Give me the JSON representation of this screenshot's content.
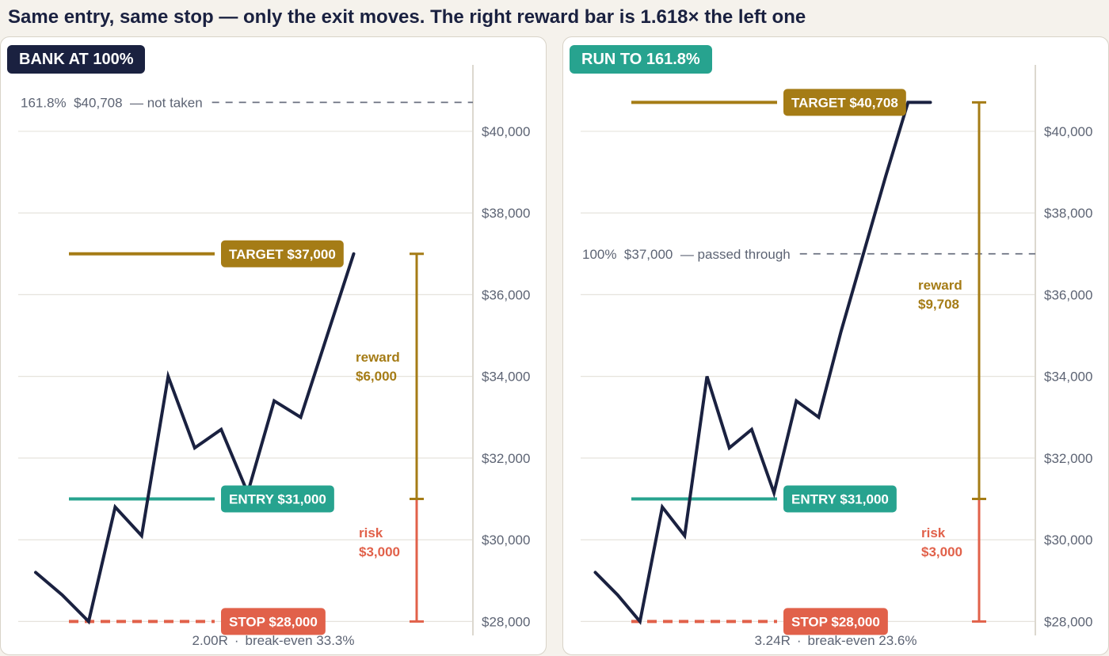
{
  "headline": "Same entry, same stop — only the exit moves. The right reward bar is 1.618× the left one",
  "colors": {
    "navy": "#1a2140",
    "teal": "#27a38f",
    "gold": "#a57c16",
    "red": "#e1614a",
    "grid": "#e6e3dc",
    "muted": "#5d6474"
  },
  "left": {
    "badge": "BANK AT 100%",
    "footer_r": "2.00R",
    "footer_sep": "·",
    "footer_be": "break-even 33.3%"
  },
  "right": {
    "badge": "RUN TO 161.8%",
    "footer_r": "3.24R",
    "footer_sep": "·",
    "footer_be": "break-even 23.6%"
  },
  "chart_data": [
    {
      "type": "line",
      "title": "BANK AT 100%",
      "ylim": [
        27600,
        41800
      ],
      "y_ticks": [
        28000,
        30000,
        32000,
        34000,
        36000,
        38000,
        40000
      ],
      "y_tick_labels": [
        "$28,000",
        "$30,000",
        "$32,000",
        "$34,000",
        "$36,000",
        "$38,000",
        "$40,000"
      ],
      "x": [
        0,
        1,
        2,
        3,
        4,
        5,
        6,
        7,
        8,
        9,
        10,
        11,
        12
      ],
      "xlim": [
        -0.3,
        16.5
      ],
      "price": [
        29200,
        28650,
        28000,
        30800,
        30100,
        34000,
        32250,
        32700,
        31150,
        33400,
        33000,
        35000,
        37000
      ],
      "levels": {
        "target": {
          "label": "TARGET $37,000",
          "value": 37000
        },
        "entry": {
          "label": "ENTRY $31,000",
          "value": 31000
        },
        "stop": {
          "label": "STOP $28,000",
          "value": 28000
        }
      },
      "dashed_ref": {
        "text": "161.8%  $40,708  — not taken",
        "value": 40708
      },
      "reward": {
        "label": "reward",
        "amount": "$6,000"
      },
      "risk": {
        "label": "risk",
        "amount": "$3,000"
      }
    },
    {
      "type": "line",
      "title": "RUN TO 161.8%",
      "ylim": [
        27600,
        41800
      ],
      "y_ticks": [
        28000,
        30000,
        32000,
        34000,
        36000,
        38000,
        40000
      ],
      "y_tick_labels": [
        "$28,000",
        "$30,000",
        "$32,000",
        "$34,000",
        "$36,000",
        "$38,000",
        "$40,000"
      ],
      "x": [
        0,
        1,
        2,
        3,
        4,
        5,
        6,
        7,
        8,
        9,
        10,
        11,
        12,
        13,
        14,
        15
      ],
      "xlim": [
        -0.3,
        19.7
      ],
      "price": [
        29200,
        28650,
        28000,
        30800,
        30100,
        34000,
        32250,
        32700,
        31150,
        33400,
        33000,
        35100,
        37000,
        38900,
        40708,
        40708
      ],
      "levels": {
        "target": {
          "label": "TARGET $40,708",
          "value": 40708
        },
        "entry": {
          "label": "ENTRY $31,000",
          "value": 31000
        },
        "stop": {
          "label": "STOP $28,000",
          "value": 28000
        }
      },
      "dashed_ref": {
        "text": "100%  $37,000  — passed through",
        "value": 37000
      },
      "reward": {
        "label": "reward",
        "amount": "$9,708"
      },
      "risk": {
        "label": "risk",
        "amount": "$3,000"
      }
    }
  ]
}
